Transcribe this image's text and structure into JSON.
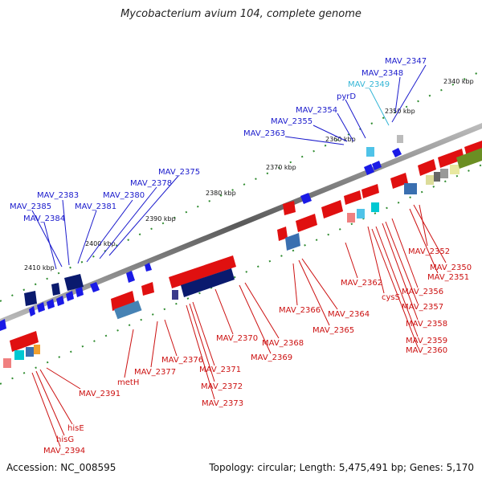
{
  "title": "Mycobacterium avium 104, complete genome",
  "accession": "Accession: NC_008595",
  "genome_info": "Topology: circular; Length: 5,475,491 bp; Genes: 5,170",
  "colors": {
    "forward_label": "#1a1acc",
    "highlight_label": "#33b5d6",
    "reverse_label": "#cc1111",
    "backbone": "#888888"
  },
  "kbp_ticks": [
    "2340 kbp",
    "2350 kbp",
    "2360 kbp",
    "2370 kbp",
    "2380 kbp",
    "2390 kbp",
    "2400 kbp",
    "2410 kbp"
  ],
  "top_labels": [
    "MAV_2347",
    "MAV_2348",
    "MAV_2349",
    "pyrD",
    "MAV_2354",
    "MAV_2355",
    "MAV_2363",
    "MAV_2375",
    "MAV_2378",
    "MAV_2380",
    "MAV_2381",
    "MAV_2383",
    "MAV_2385",
    "MAV_2384"
  ],
  "bottom_labels": [
    "MAV_2352",
    "MAV_2350",
    "MAV_2351",
    "MAV_2362",
    "cysS",
    "MAV_2356",
    "MAV_2357",
    "MAV_2358",
    "MAV_2359",
    "MAV_2360",
    "MAV_2366",
    "MAV_2364",
    "MAV_2365",
    "MAV_2368",
    "MAV_2369",
    "MAV_2370",
    "MAV_2371",
    "MAV_2372",
    "MAV_2373",
    "MAV_2376",
    "MAV_2377",
    "metH",
    "MAV_2391",
    "hisE",
    "hisG",
    "MAV_2394"
  ]
}
